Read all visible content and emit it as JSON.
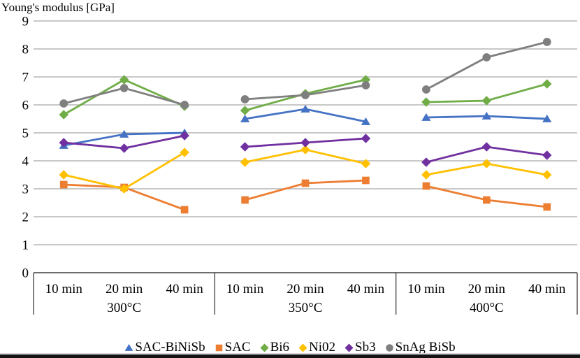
{
  "chart_data": {
    "type": "line",
    "title": "Young's modulus [GPa]",
    "ylabel": "Young's modulus [GPa]",
    "xlabel": "",
    "ylim": [
      0,
      9
    ],
    "yticks": [
      0,
      1,
      2,
      3,
      4,
      5,
      6,
      7,
      8,
      9
    ],
    "grid": true,
    "legend_position": "bottom",
    "group_labels": [
      "300°C",
      "350°C",
      "400°C"
    ],
    "categories": [
      "10 min",
      "20 min",
      "40 min"
    ],
    "series": [
      {
        "name": "SAC-BiNiSb",
        "color": "#4472C4",
        "marker": "triangle",
        "values": [
          [
            4.55,
            4.95,
            5.0
          ],
          [
            5.5,
            5.85,
            5.4
          ],
          [
            5.55,
            5.6,
            5.5
          ]
        ]
      },
      {
        "name": "SAC",
        "color": "#ED7D31",
        "marker": "square",
        "values": [
          [
            3.15,
            3.05,
            2.25
          ],
          [
            2.6,
            3.2,
            3.3
          ],
          [
            3.1,
            2.6,
            2.35
          ]
        ]
      },
      {
        "name": "Bi6",
        "color": "#70AD47",
        "marker": "diamond",
        "values": [
          [
            5.65,
            6.9,
            5.95
          ],
          [
            5.8,
            6.4,
            6.9
          ],
          [
            6.1,
            6.15,
            6.75
          ]
        ]
      },
      {
        "name": "Ni02",
        "color": "#FFC000",
        "marker": "diamond",
        "values": [
          [
            3.5,
            3.0,
            4.3
          ],
          [
            3.95,
            4.4,
            3.9
          ],
          [
            3.5,
            3.9,
            3.5
          ]
        ]
      },
      {
        "name": "Sb3",
        "color": "#7030A0",
        "marker": "diamond",
        "values": [
          [
            4.65,
            4.45,
            4.9
          ],
          [
            4.5,
            4.65,
            4.8
          ],
          [
            3.95,
            4.5,
            4.2
          ]
        ]
      },
      {
        "name": "SnAg BiSb",
        "color": "#7F7F7F",
        "marker": "circle",
        "values": [
          [
            6.05,
            6.6,
            6.0
          ],
          [
            6.2,
            6.35,
            6.7
          ],
          [
            6.55,
            7.7,
            8.25
          ]
        ]
      }
    ]
  },
  "colors": {
    "gridline": "#A6A6A6",
    "axis_box": "#3B3B3B",
    "text": "#000000",
    "bottom_bar": "#141414",
    "bottom_line": "#D9D9D9"
  }
}
